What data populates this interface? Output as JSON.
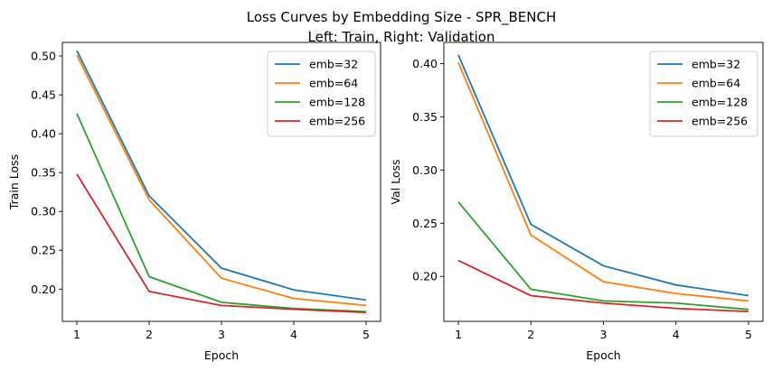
{
  "figure": {
    "title_line1": "Loss Curves by Embedding Size - SPR_BENCH",
    "title_line2": "Left: Train, Right: Validation"
  },
  "chart_data": [
    {
      "type": "line",
      "xlabel": "Epoch",
      "ylabel": "Train Loss",
      "x": [
        1,
        2,
        3,
        4,
        5
      ],
      "xticks": [
        1,
        2,
        3,
        4,
        5
      ],
      "yticks": [
        0.2,
        0.25,
        0.3,
        0.35,
        0.4,
        0.45,
        0.5
      ],
      "xlim": [
        0.8,
        5.2
      ],
      "ylim": [
        0.1585,
        0.5175
      ],
      "legend": "top-right",
      "grid": false,
      "series": [
        {
          "name": "emb=32",
          "color": "#1f77b4",
          "values": [
            0.507,
            0.32,
            0.227,
            0.199,
            0.186
          ]
        },
        {
          "name": "emb=64",
          "color": "#ff7f0e",
          "values": [
            0.501,
            0.315,
            0.214,
            0.188,
            0.179
          ]
        },
        {
          "name": "emb=128",
          "color": "#2ca02c",
          "values": [
            0.426,
            0.216,
            0.183,
            0.175,
            0.171
          ]
        },
        {
          "name": "emb=256",
          "color": "#d62728",
          "values": [
            0.348,
            0.197,
            0.179,
            0.174,
            0.17
          ]
        }
      ]
    },
    {
      "type": "line",
      "xlabel": "Epoch",
      "ylabel": "Val Loss",
      "x": [
        1,
        2,
        3,
        4,
        5
      ],
      "xticks": [
        1,
        2,
        3,
        4,
        5
      ],
      "yticks": [
        0.2,
        0.25,
        0.3,
        0.35,
        0.4
      ],
      "xlim": [
        0.8,
        5.2
      ],
      "ylim": [
        0.1578,
        0.4199
      ],
      "legend": "top-right",
      "grid": false,
      "series": [
        {
          "name": "emb=32",
          "color": "#1f77b4",
          "values": [
            0.408,
            0.249,
            0.21,
            0.192,
            0.182
          ]
        },
        {
          "name": "emb=64",
          "color": "#ff7f0e",
          "values": [
            0.401,
            0.239,
            0.195,
            0.184,
            0.177
          ]
        },
        {
          "name": "emb=128",
          "color": "#2ca02c",
          "values": [
            0.27,
            0.188,
            0.177,
            0.175,
            0.169
          ]
        },
        {
          "name": "emb=256",
          "color": "#d62728",
          "values": [
            0.215,
            0.182,
            0.175,
            0.17,
            0.167
          ]
        }
      ]
    }
  ]
}
